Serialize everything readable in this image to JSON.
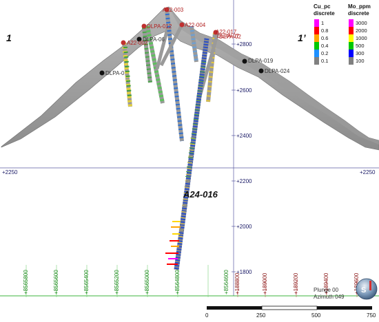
{
  "section_labels": {
    "left": "1",
    "right": "1’"
  },
  "elevation_labels": [
    "+2800",
    "+2600",
    "+2400",
    "+2200",
    "+2000",
    "+1800"
  ],
  "horizon_label_left": "+2250",
  "horizon_label_right": "+2250",
  "northing_labels": [
    "+8565800",
    "+8565600",
    "+8565400",
    "+8565200",
    "+8565000",
    "+8564800",
    "+8564600"
  ],
  "easting_labels": [
    "+188800",
    "+189000",
    "+189200",
    "+189400",
    "+189600"
  ],
  "holes": [
    {
      "label": "A22-002",
      "style": "red"
    },
    {
      "label": "DLPA-0",
      "style": "dark"
    },
    {
      "label": "DLPA-07",
      "style": "red"
    },
    {
      "label": "DLPA-019",
      "style": "dark"
    },
    {
      "label": "DLPA-024",
      "style": "dark"
    },
    {
      "label": "A22-003",
      "style": "red"
    },
    {
      "label": "DLPA-06",
      "style": "dark"
    },
    {
      "label": "DLPA-012",
      "style": "red"
    },
    {
      "label": "A22-004",
      "style": "red"
    },
    {
      "label": "A22-017",
      "style": "red"
    },
    {
      "label": "DLPA-02",
      "style": "red"
    }
  ],
  "featured_hole": "A24-016",
  "legend": {
    "cu": {
      "title1": "Cu_pc",
      "title2": "discrete",
      "values": [
        "1",
        "0.8",
        "0.6",
        "0.4",
        "0.2",
        "0.1"
      ],
      "colors": [
        "#ff00ff",
        "#ff0000",
        "#ffa500",
        "#00c800",
        "#1e90ff",
        "#808080"
      ]
    },
    "mo": {
      "title1": "Mo_ppm",
      "title2": "discrete",
      "values": [
        "3000",
        "2000",
        "1000",
        "500",
        "300",
        "100"
      ],
      "colors": [
        "#ff00ff",
        "#ff0000",
        "#ffff00",
        "#00c800",
        "#0000ff",
        "#808080"
      ]
    }
  },
  "orientation": {
    "plunge": "Plunge 00",
    "azimuth": "Azimuth 049"
  },
  "scale_bar": {
    "ticks": [
      "0",
      "250",
      "500",
      "750"
    ]
  },
  "compass_icon": "compass-globe-icon"
}
